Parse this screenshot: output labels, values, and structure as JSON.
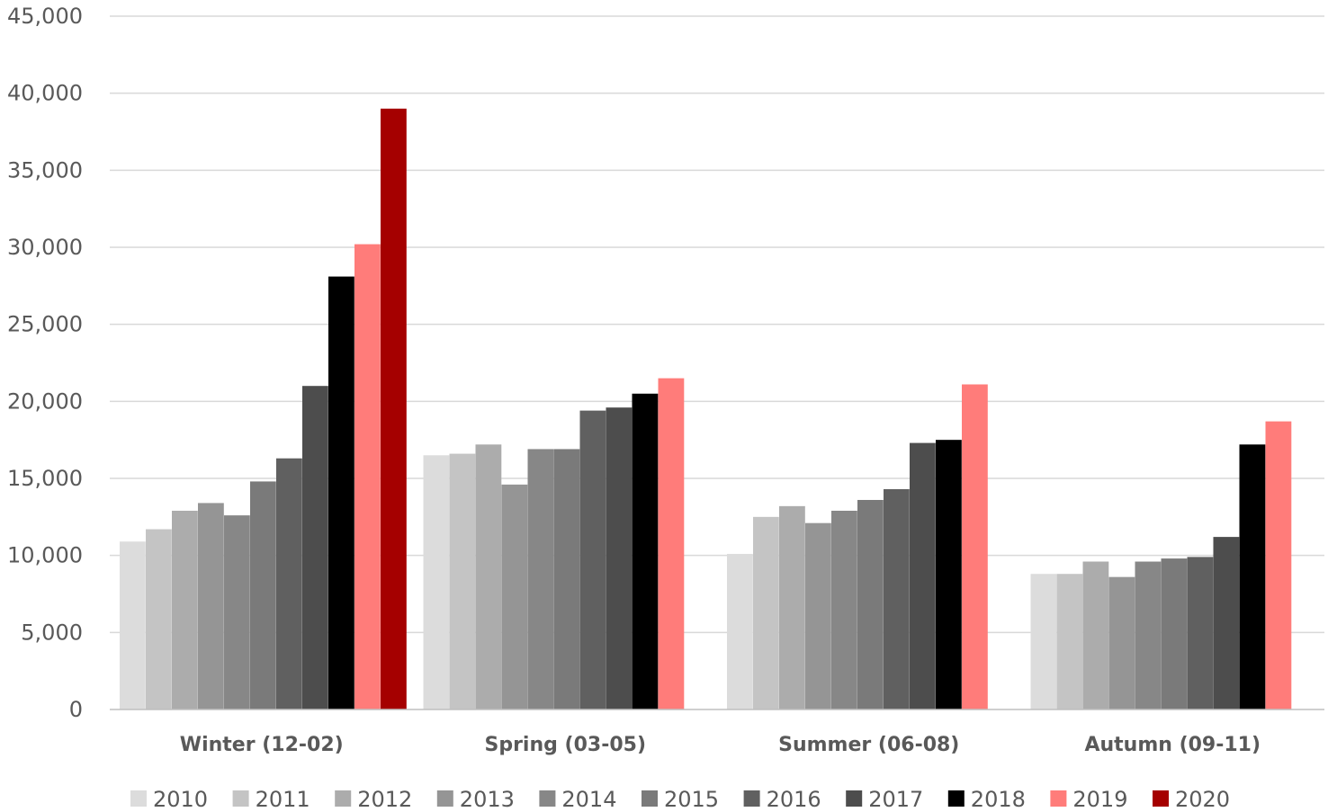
{
  "chart_data": {
    "type": "bar",
    "title": "",
    "xlabel": "",
    "ylabel": "",
    "categories": [
      "Winter (12-02)",
      "Spring (03-05)",
      "Summer (06-08)",
      "Autumn (09-11)"
    ],
    "ylim": [
      0,
      45000
    ],
    "yticks": [
      0,
      5000,
      10000,
      15000,
      20000,
      25000,
      30000,
      35000,
      40000,
      45000
    ],
    "ytick_labels": [
      "0",
      "5,000",
      "10,000",
      "15,000",
      "20,000",
      "25,000",
      "30,000",
      "35,000",
      "40,000",
      "45,000"
    ],
    "grid": "horizontal",
    "legend_position": "bottom",
    "series": [
      {
        "name": "2010",
        "color": "#dcdcdc",
        "values": [
          10900,
          16500,
          10100,
          8800
        ]
      },
      {
        "name": "2011",
        "color": "#c4c4c4",
        "values": [
          11700,
          16600,
          12500,
          8800
        ]
      },
      {
        "name": "2012",
        "color": "#acacac",
        "values": [
          12900,
          17200,
          13200,
          9600
        ]
      },
      {
        "name": "2013",
        "color": "#959595",
        "values": [
          13400,
          14600,
          12100,
          8600
        ]
      },
      {
        "name": "2014",
        "color": "#878787",
        "values": [
          12600,
          16900,
          12900,
          9600
        ]
      },
      {
        "name": "2015",
        "color": "#7a7a7a",
        "values": [
          14800,
          16900,
          13600,
          9800
        ]
      },
      {
        "name": "2016",
        "color": "#606060",
        "values": [
          16300,
          19400,
          14300,
          9900
        ]
      },
      {
        "name": "2017",
        "color": "#4d4d4d",
        "values": [
          21000,
          19600,
          17300,
          11200
        ]
      },
      {
        "name": "2018",
        "color": "#000000",
        "values": [
          28100,
          20500,
          17500,
          17200
        ]
      },
      {
        "name": "2019",
        "color": "#ff7c7a",
        "values": [
          30200,
          21500,
          21100,
          18700
        ]
      },
      {
        "name": "2020",
        "color": "#a50000",
        "values": [
          39000,
          null,
          null,
          null
        ]
      }
    ]
  }
}
